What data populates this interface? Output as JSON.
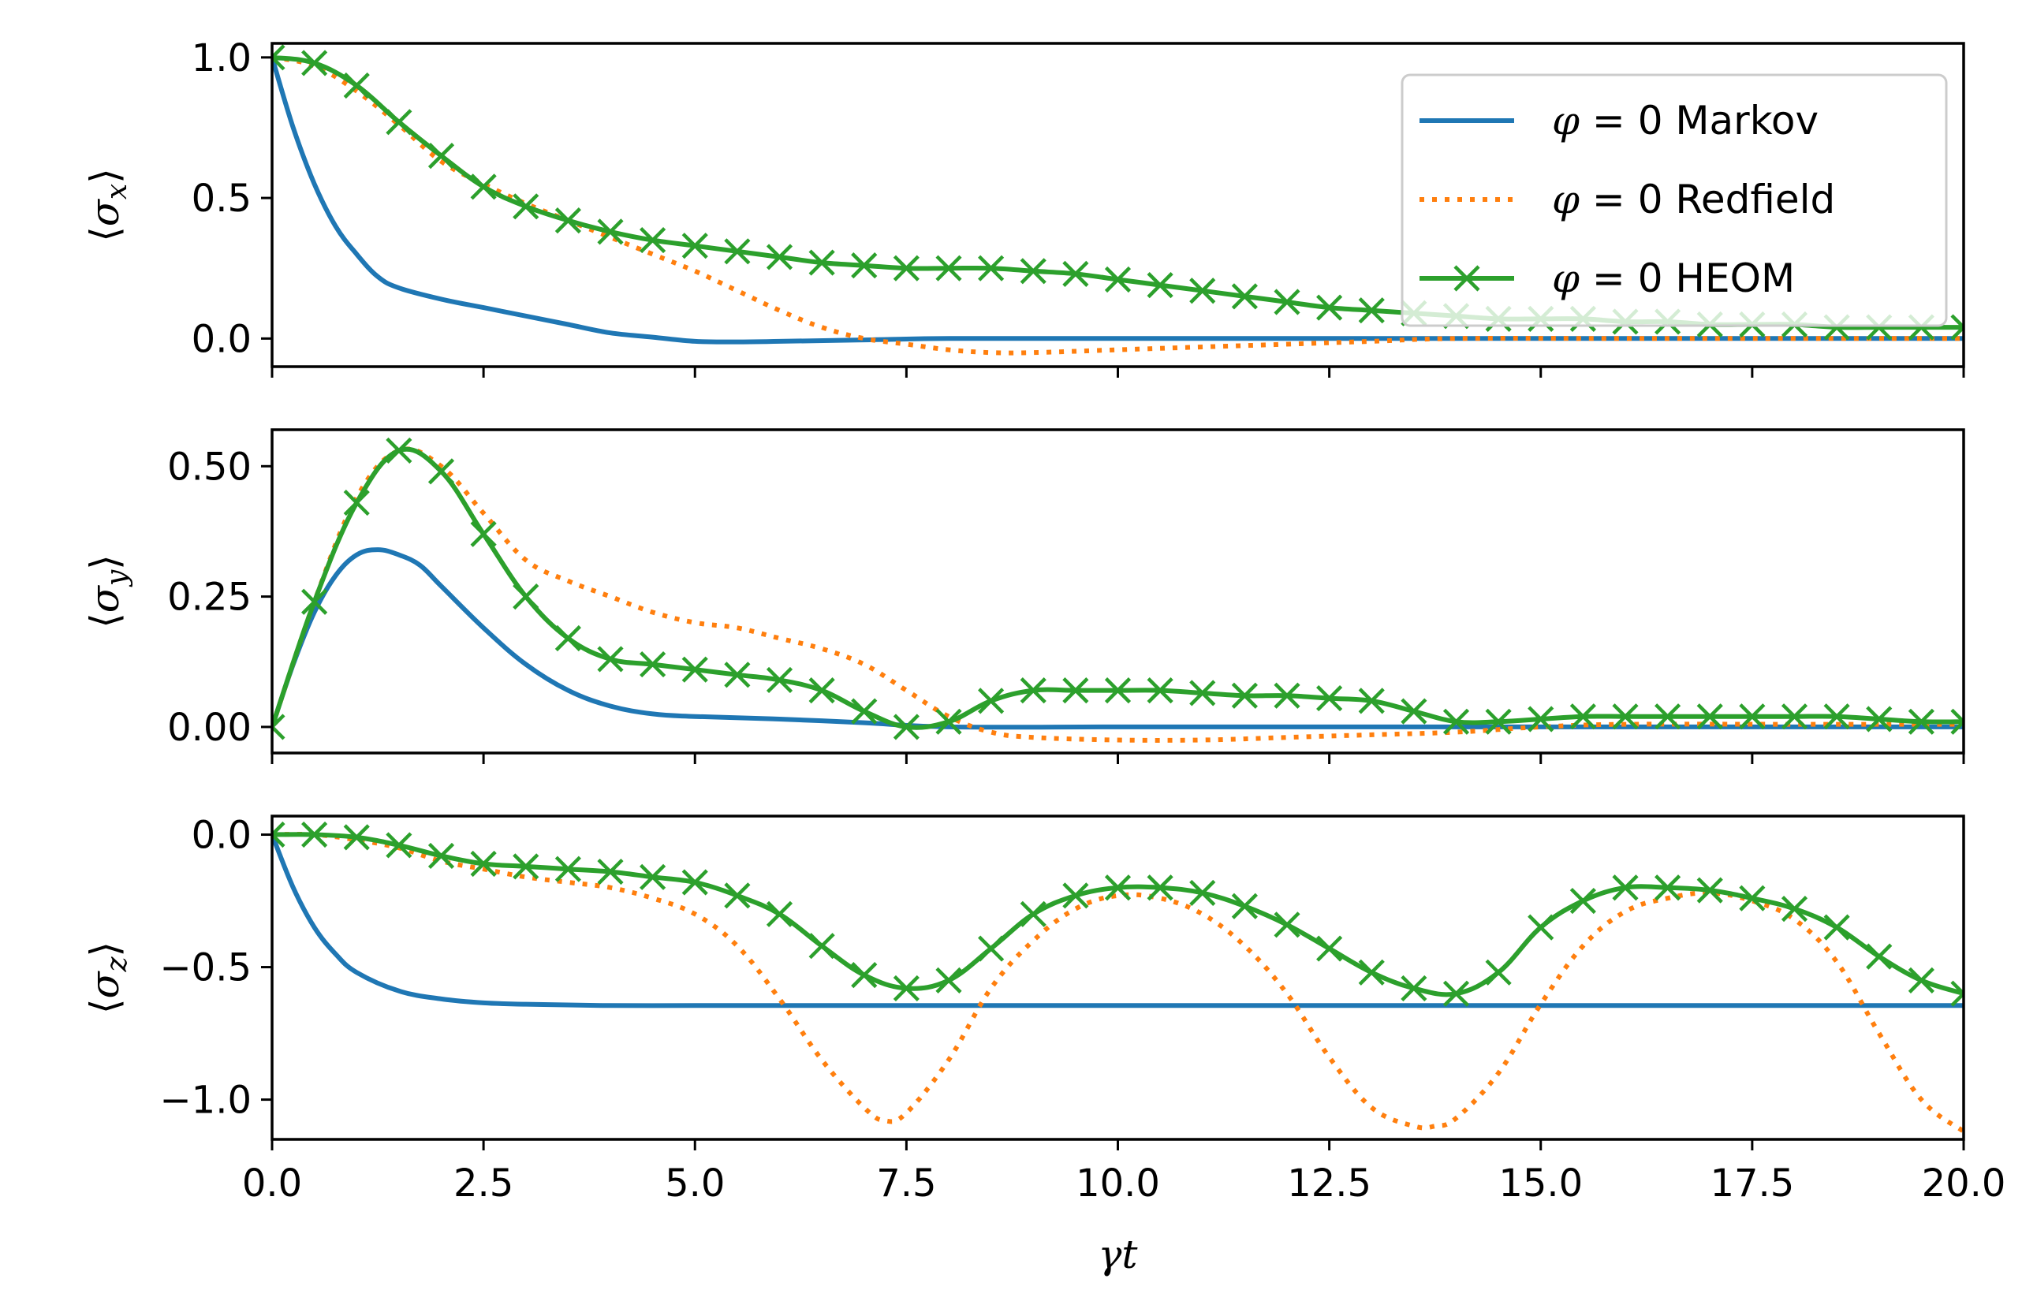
{
  "chart_data": [
    {
      "type": "line",
      "panel": "top",
      "title": "",
      "ylabel": "⟨σx⟩",
      "ylabel_parts": {
        "open": "⟨",
        "sym": "σ",
        "sub": "x",
        "close": "⟩"
      },
      "xlabel": "",
      "xlim": [
        0,
        20
      ],
      "ylim": [
        -0.1,
        1.05
      ],
      "yticks": [
        0.0,
        0.5,
        1.0
      ],
      "ytick_labels": [
        "0.0",
        "0.5",
        "1.0"
      ],
      "show_xtick_labels": false,
      "legend": {
        "location": "upper right",
        "entries": [
          {
            "prefix": "φ",
            "text": " = 0 Markov",
            "series": "Markov"
          },
          {
            "prefix": "φ",
            "text": " = 0 Redfield",
            "series": "Redfield"
          },
          {
            "prefix": "φ",
            "text": " = 0 HEOM",
            "series": "HEOM"
          }
        ]
      },
      "series": [
        {
          "name": "φ = 0 Markov",
          "style": "solid",
          "color": "#1f77b4",
          "x": [
            0,
            0.25,
            0.5,
            0.75,
            1.0,
            1.25,
            1.5,
            2.0,
            2.5,
            3.0,
            3.5,
            4.0,
            4.5,
            5.0,
            5.5,
            6.0,
            7.0,
            8.0,
            10.0,
            12.0,
            14.0,
            16.0,
            18.0,
            20.0
          ],
          "y": [
            1.0,
            0.75,
            0.55,
            0.4,
            0.3,
            0.22,
            0.18,
            0.14,
            0.11,
            0.08,
            0.05,
            0.02,
            0.005,
            -0.01,
            -0.012,
            -0.01,
            -0.005,
            0.0,
            0.0,
            0.0,
            0.0,
            0.0,
            0.0,
            0.0
          ]
        },
        {
          "name": "φ = 0 Redfield",
          "style": "dotted",
          "color": "#ff7f0e",
          "x": [
            0,
            0.5,
            1.0,
            1.5,
            2.0,
            2.5,
            3.0,
            3.5,
            4.0,
            4.5,
            5.0,
            5.5,
            6.0,
            6.5,
            7.0,
            7.5,
            8.0,
            8.5,
            9.0,
            10.0,
            11.0,
            12.0,
            13.0,
            14.0,
            16.0,
            18.0,
            20.0
          ],
          "y": [
            1.0,
            0.97,
            0.88,
            0.76,
            0.63,
            0.55,
            0.48,
            0.42,
            0.36,
            0.3,
            0.24,
            0.17,
            0.1,
            0.04,
            0.0,
            -0.02,
            -0.04,
            -0.05,
            -0.05,
            -0.04,
            -0.03,
            -0.02,
            -0.01,
            0.0,
            0.0,
            0.0,
            0.0
          ]
        },
        {
          "name": "φ = 0 HEOM",
          "style": "solid-x",
          "color": "#2ca02c",
          "x": [
            0,
            0.5,
            1.0,
            1.5,
            2.0,
            2.5,
            3.0,
            3.5,
            4.0,
            4.5,
            5.0,
            5.5,
            6.0,
            6.5,
            7.0,
            7.5,
            8.0,
            8.5,
            9.0,
            9.5,
            10.0,
            10.5,
            11.0,
            11.5,
            12.0,
            12.5,
            13.0,
            13.5,
            14.0,
            14.5,
            15.0,
            15.5,
            16.0,
            16.5,
            17.0,
            17.5,
            18.0,
            18.5,
            19.0,
            19.5,
            20.0
          ],
          "y": [
            1.0,
            0.98,
            0.9,
            0.77,
            0.65,
            0.54,
            0.47,
            0.42,
            0.38,
            0.35,
            0.33,
            0.31,
            0.29,
            0.27,
            0.26,
            0.25,
            0.25,
            0.25,
            0.24,
            0.23,
            0.21,
            0.19,
            0.17,
            0.15,
            0.13,
            0.11,
            0.1,
            0.09,
            0.08,
            0.07,
            0.07,
            0.07,
            0.06,
            0.06,
            0.05,
            0.05,
            0.05,
            0.04,
            0.04,
            0.04,
            0.04
          ]
        }
      ]
    },
    {
      "type": "line",
      "panel": "middle",
      "title": "",
      "ylabel": "⟨σy⟩",
      "ylabel_parts": {
        "open": "⟨",
        "sym": "σ",
        "sub": "y",
        "close": "⟩"
      },
      "xlabel": "",
      "xlim": [
        0,
        20
      ],
      "ylim": [
        -0.05,
        0.57
      ],
      "yticks": [
        0.0,
        0.25,
        0.5
      ],
      "ytick_labels": [
        "0.00",
        "0.25",
        "0.50"
      ],
      "show_xtick_labels": false,
      "series": [
        {
          "name": "φ = 0 Markov",
          "style": "solid",
          "color": "#1f77b4",
          "x": [
            0,
            0.25,
            0.5,
            0.75,
            1.0,
            1.25,
            1.5,
            1.75,
            2.0,
            2.5,
            3.0,
            3.5,
            4.0,
            4.5,
            5.0,
            6.0,
            7.0,
            8.0,
            10.0,
            12.0,
            14.0,
            16.0,
            18.0,
            20.0
          ],
          "y": [
            0.0,
            0.12,
            0.22,
            0.29,
            0.33,
            0.34,
            0.33,
            0.31,
            0.27,
            0.19,
            0.12,
            0.07,
            0.04,
            0.025,
            0.02,
            0.015,
            0.008,
            0.0,
            0.0,
            0.0,
            0.0,
            0.0,
            0.0,
            0.0
          ]
        },
        {
          "name": "φ = 0 Redfield",
          "style": "dotted",
          "color": "#ff7f0e",
          "x": [
            0,
            0.5,
            1.0,
            1.5,
            2.0,
            2.5,
            3.0,
            3.5,
            4.0,
            4.5,
            5.0,
            5.5,
            6.0,
            6.5,
            7.0,
            7.5,
            8.0,
            8.5,
            9.0,
            10.0,
            11.0,
            12.0,
            13.0,
            14.0,
            15.0,
            16.0,
            18.0,
            20.0
          ],
          "y": [
            0.0,
            0.24,
            0.44,
            0.53,
            0.5,
            0.41,
            0.32,
            0.28,
            0.25,
            0.22,
            0.2,
            0.19,
            0.17,
            0.15,
            0.12,
            0.07,
            0.02,
            -0.01,
            -0.02,
            -0.025,
            -0.025,
            -0.02,
            -0.015,
            -0.01,
            0.0,
            0.005,
            0.005,
            0.005
          ]
        },
        {
          "name": "φ = 0 HEOM",
          "style": "solid-x",
          "color": "#2ca02c",
          "x": [
            0,
            0.5,
            1.0,
            1.5,
            2.0,
            2.5,
            3.0,
            3.5,
            4.0,
            4.5,
            5.0,
            5.5,
            6.0,
            6.5,
            7.0,
            7.5,
            8.0,
            8.5,
            9.0,
            9.5,
            10.0,
            10.5,
            11.0,
            11.5,
            12.0,
            12.5,
            13.0,
            13.5,
            14.0,
            14.5,
            15.0,
            15.5,
            16.0,
            16.5,
            17.0,
            17.5,
            18.0,
            18.5,
            19.0,
            19.5,
            20.0
          ],
          "y": [
            0.0,
            0.24,
            0.43,
            0.53,
            0.49,
            0.37,
            0.25,
            0.17,
            0.13,
            0.12,
            0.11,
            0.1,
            0.09,
            0.07,
            0.03,
            0.0,
            0.01,
            0.05,
            0.07,
            0.07,
            0.07,
            0.07,
            0.065,
            0.06,
            0.06,
            0.055,
            0.05,
            0.03,
            0.01,
            0.01,
            0.015,
            0.02,
            0.02,
            0.02,
            0.02,
            0.02,
            0.02,
            0.02,
            0.015,
            0.01,
            0.01
          ]
        }
      ]
    },
    {
      "type": "line",
      "panel": "bottom",
      "title": "",
      "ylabel": "⟨σz⟩",
      "ylabel_parts": {
        "open": "⟨",
        "sym": "σ",
        "sub": "z",
        "close": "⟩"
      },
      "xlabel": "γt",
      "xlim": [
        0,
        20
      ],
      "ylim": [
        -1.15,
        0.07
      ],
      "yticks": [
        0.0,
        -0.5,
        -1.0
      ],
      "ytick_labels": [
        "0.0",
        "−0.5",
        "−1.0"
      ],
      "xticks": [
        0,
        2.5,
        5.0,
        7.5,
        10.0,
        12.5,
        15.0,
        17.5,
        20.0
      ],
      "xtick_labels": [
        "0.0",
        "2.5",
        "5.0",
        "7.5",
        "10.0",
        "12.5",
        "15.0",
        "17.5",
        "20.0"
      ],
      "show_xtick_labels": true,
      "series": [
        {
          "name": "φ = 0 Markov",
          "style": "solid",
          "color": "#1f77b4",
          "x": [
            0,
            0.25,
            0.5,
            0.75,
            1.0,
            1.5,
            2.0,
            2.5,
            3.0,
            4.0,
            5.0,
            6.0,
            8.0,
            10.0,
            12.0,
            14.0,
            16.0,
            18.0,
            20.0
          ],
          "y": [
            0.0,
            -0.2,
            -0.35,
            -0.45,
            -0.52,
            -0.59,
            -0.62,
            -0.635,
            -0.64,
            -0.645,
            -0.645,
            -0.645,
            -0.645,
            -0.645,
            -0.645,
            -0.645,
            -0.645,
            -0.645,
            -0.645
          ]
        },
        {
          "name": "φ = 0 Redfield",
          "style": "dotted",
          "color": "#ff7f0e",
          "x": [
            0,
            0.5,
            1.0,
            1.5,
            2.0,
            2.5,
            3.0,
            3.5,
            4.0,
            4.5,
            5.0,
            5.5,
            6.0,
            6.5,
            7.0,
            7.25,
            7.5,
            8.0,
            8.5,
            9.0,
            9.5,
            10.0,
            10.5,
            11.0,
            11.5,
            12.0,
            12.5,
            13.0,
            13.5,
            13.75,
            14.0,
            14.5,
            15.0,
            15.5,
            16.0,
            16.5,
            17.0,
            17.5,
            18.0,
            18.5,
            19.0,
            19.5,
            20.0
          ],
          "y": [
            0.0,
            0.0,
            -0.02,
            -0.05,
            -0.1,
            -0.13,
            -0.16,
            -0.18,
            -0.2,
            -0.24,
            -0.3,
            -0.42,
            -0.62,
            -0.85,
            -1.03,
            -1.08,
            -1.05,
            -0.85,
            -0.58,
            -0.4,
            -0.28,
            -0.23,
            -0.24,
            -0.3,
            -0.42,
            -0.6,
            -0.84,
            -1.03,
            -1.1,
            -1.1,
            -1.07,
            -0.9,
            -0.64,
            -0.42,
            -0.29,
            -0.24,
            -0.22,
            -0.25,
            -0.32,
            -0.48,
            -0.75,
            -1.0,
            -1.12
          ]
        },
        {
          "name": "φ = 0 HEOM",
          "style": "solid-x",
          "color": "#2ca02c",
          "x": [
            0,
            0.5,
            1.0,
            1.5,
            2.0,
            2.5,
            3.0,
            3.5,
            4.0,
            4.5,
            5.0,
            5.5,
            6.0,
            6.5,
            7.0,
            7.5,
            8.0,
            8.5,
            9.0,
            9.5,
            10.0,
            10.5,
            11.0,
            11.5,
            12.0,
            12.5,
            13.0,
            13.5,
            14.0,
            14.5,
            15.0,
            15.5,
            16.0,
            16.5,
            17.0,
            17.5,
            18.0,
            18.5,
            19.0,
            19.5,
            20.0
          ],
          "y": [
            0.0,
            0.0,
            -0.01,
            -0.04,
            -0.08,
            -0.11,
            -0.12,
            -0.13,
            -0.14,
            -0.16,
            -0.18,
            -0.23,
            -0.3,
            -0.42,
            -0.53,
            -0.58,
            -0.55,
            -0.43,
            -0.3,
            -0.23,
            -0.2,
            -0.2,
            -0.22,
            -0.27,
            -0.34,
            -0.43,
            -0.52,
            -0.58,
            -0.6,
            -0.52,
            -0.35,
            -0.25,
            -0.2,
            -0.2,
            -0.21,
            -0.24,
            -0.28,
            -0.35,
            -0.46,
            -0.55,
            -0.6
          ]
        }
      ]
    }
  ]
}
